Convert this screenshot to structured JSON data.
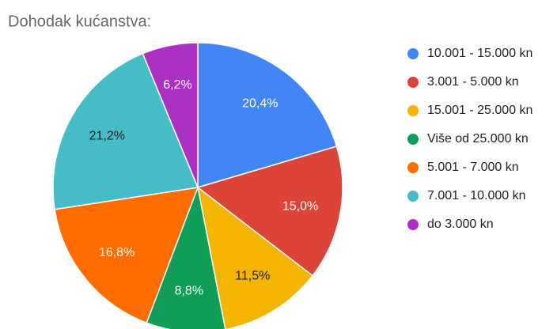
{
  "chart_data": {
    "type": "pie",
    "title": "Dohodak kućanstva:",
    "categories": [
      "10.001 - 15.000 kn",
      "3.001 - 5.000 kn",
      "15.001 - 25.000 kn",
      "Više od 25.000 kn",
      "5.001 - 7.000 kn",
      "7.001 - 10.000 kn",
      "do 3.000 kn"
    ],
    "values": [
      20.4,
      15.0,
      11.5,
      8.8,
      16.8,
      21.2,
      6.2
    ],
    "value_labels": [
      "20,4%",
      "15,0%",
      "11,5%",
      "8,8%",
      "16,8%",
      "21,2%",
      "6,2%"
    ],
    "colors": [
      "#4285f4",
      "#db4437",
      "#f4b400",
      "#0f9d58",
      "#ff6d01",
      "#46bdc6",
      "#ab30c4"
    ],
    "legend": "right"
  }
}
